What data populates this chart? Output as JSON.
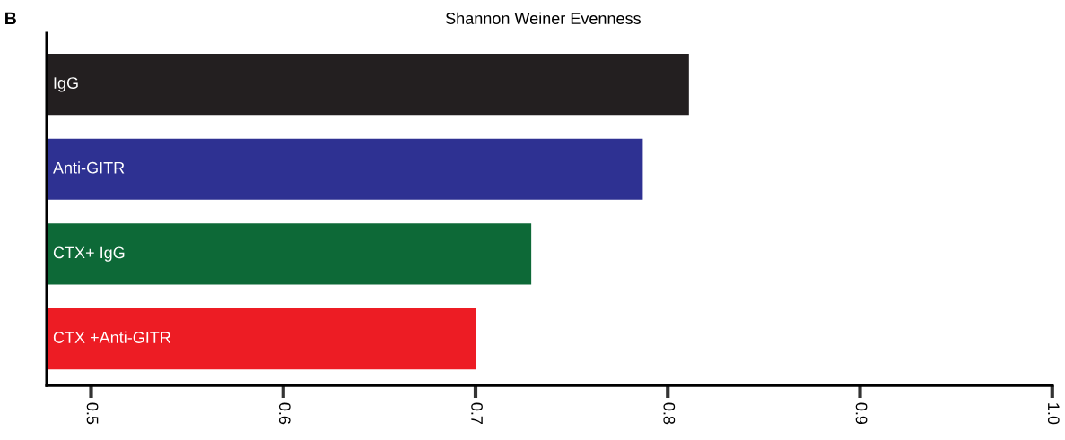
{
  "chart_data": {
    "type": "bar",
    "orientation": "horizontal",
    "title": "Shannon Weiner Evenness",
    "annotations": [
      "B"
    ],
    "categories": [
      "IgG",
      "Anti-GITR",
      "CTX+ IgG",
      "CTX +Anti-GITR"
    ],
    "values": [
      0.811,
      0.787,
      0.729,
      0.7
    ],
    "colors": [
      "#231f20",
      "#2e3192",
      "#0d6937",
      "#ed1c24"
    ],
    "xlim": [
      0.477,
      1.0
    ],
    "xticks": [
      0.5,
      0.6,
      0.7,
      0.8,
      0.9,
      {
        "value": 1.0,
        "label": "1.0"
      }
    ],
    "grid": false,
    "legend": false
  }
}
